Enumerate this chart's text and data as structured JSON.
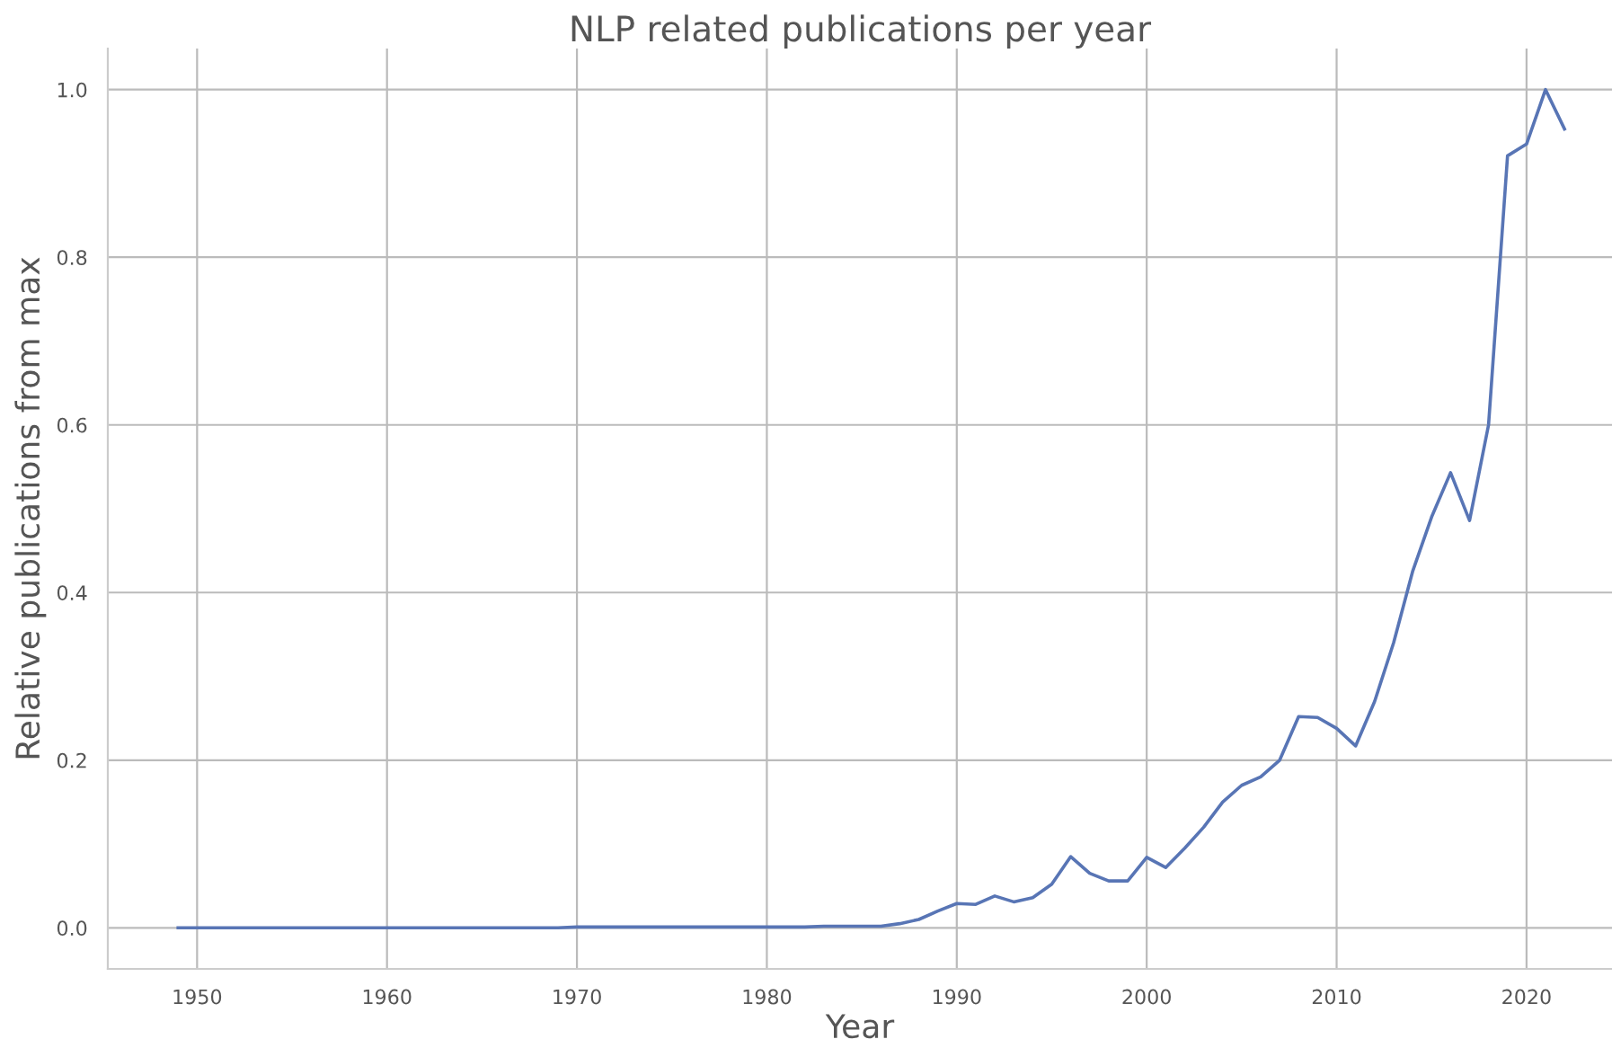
{
  "chart_data": {
    "type": "line",
    "title": "NLP related publications per year",
    "xlabel": "Year",
    "ylabel": "Relative publications from max",
    "x": [
      1949,
      1950,
      1951,
      1952,
      1953,
      1954,
      1955,
      1956,
      1957,
      1958,
      1959,
      1960,
      1961,
      1962,
      1963,
      1964,
      1965,
      1966,
      1967,
      1968,
      1969,
      1970,
      1971,
      1972,
      1973,
      1974,
      1975,
      1976,
      1977,
      1978,
      1979,
      1980,
      1981,
      1982,
      1983,
      1984,
      1985,
      1986,
      1987,
      1988,
      1989,
      1990,
      1991,
      1992,
      1993,
      1994,
      1995,
      1996,
      1997,
      1998,
      1999,
      2000,
      2001,
      2002,
      2003,
      2004,
      2005,
      2006,
      2007,
      2008,
      2009,
      2010,
      2011,
      2012,
      2013,
      2014,
      2015,
      2016,
      2017,
      2018,
      2019,
      2020,
      2021,
      2022
    ],
    "series": [
      {
        "color": "#5875b5",
        "values": [
          0,
          0,
          0,
          0,
          0,
          0,
          0,
          0,
          0,
          0,
          0,
          0,
          0,
          0,
          0,
          0,
          0,
          0,
          0,
          0,
          0,
          0.001,
          0.001,
          0.001,
          0.001,
          0.001,
          0.001,
          0.001,
          0.001,
          0.001,
          0.001,
          0.001,
          0.001,
          0.001,
          0.002,
          0.002,
          0.002,
          0.002,
          0.005,
          0.01,
          0.02,
          0.029,
          0.028,
          0.038,
          0.031,
          0.036,
          0.052,
          0.085,
          0.065,
          0.056,
          0.056,
          0.084,
          0.072,
          0.095,
          0.12,
          0.15,
          0.17,
          0.18,
          0.2,
          0.252,
          0.251,
          0.238,
          0.217,
          0.27,
          0.34,
          0.425,
          0.49,
          0.543,
          0.486,
          0.6,
          0.921,
          0.935,
          1.0,
          0.953
        ]
      }
    ],
    "xlim": [
      1945.3,
      2024.5
    ],
    "ylim": [
      -0.049,
      1.049
    ],
    "xticks": [
      1950,
      1960,
      1970,
      1980,
      1990,
      2000,
      2010,
      2020
    ],
    "yticks": [
      {
        "value": 0,
        "label": "0.0"
      },
      {
        "value": 0.2,
        "label": "0.2"
      },
      {
        "value": 0.4,
        "label": "0.4"
      },
      {
        "value": 0.6,
        "label": "0.6"
      },
      {
        "value": 0.8,
        "label": "0.8"
      },
      {
        "value": 1,
        "label": "1.0"
      }
    ],
    "grid": true,
    "legend": false,
    "marker": "none",
    "line_style": "solid"
  }
}
